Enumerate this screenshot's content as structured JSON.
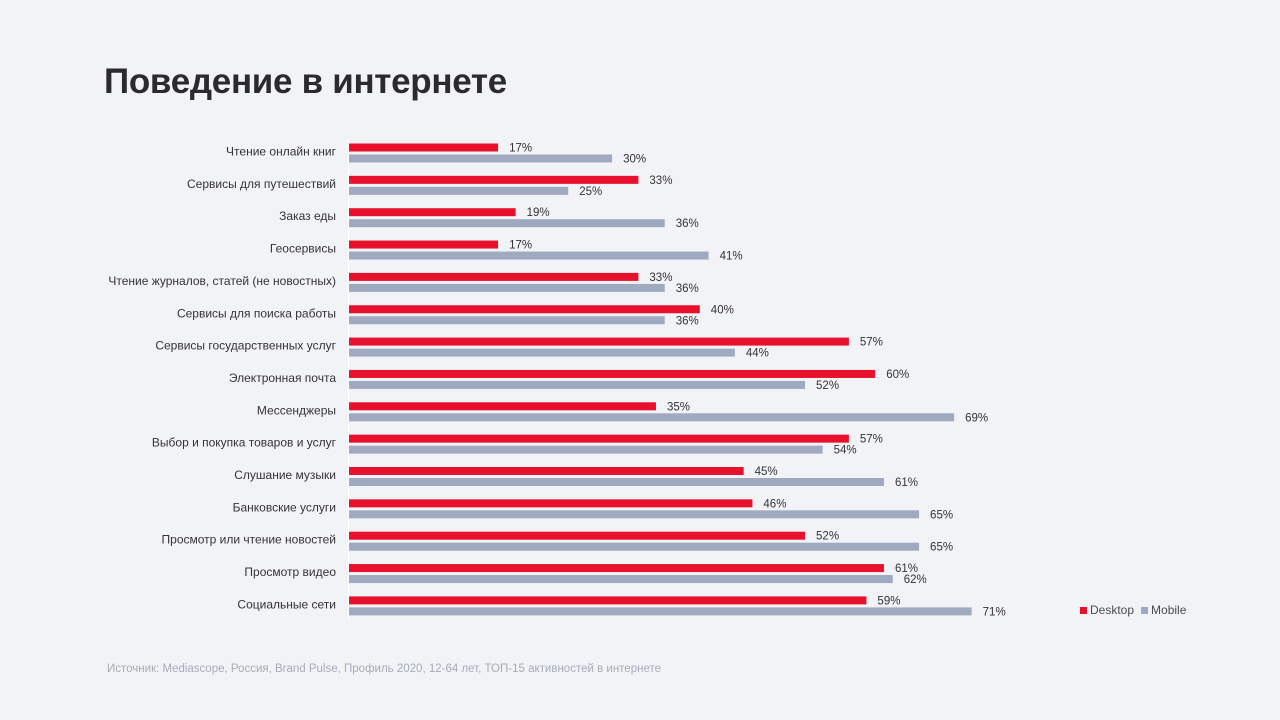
{
  "title": "Поведение в интернете",
  "source": "Источник: Mediascope, Россия, Brand Pulse, Профиль 2020, 12-64 лет, ТОП-15 активностей в интернете",
  "colors": {
    "desktop": "#e8112d",
    "mobile": "#9fa9bf",
    "background": "#f2f3f6"
  },
  "legend": [
    {
      "name": "Desktop",
      "color": "#e8112d"
    },
    {
      "name": "Mobile",
      "color": "#9fa9bf"
    }
  ],
  "chart_data": {
    "type": "bar",
    "orientation": "horizontal",
    "title": "Поведение в интернете",
    "xlabel": "",
    "ylabel": "",
    "xlim": [
      0,
      100
    ],
    "grid": false,
    "legend_position": "bottom-right",
    "value_suffix": "%",
    "categories": [
      "Чтение онлайн книг",
      "Сервисы для путешествий",
      "Заказ еды",
      "Геосервисы",
      "Чтение журналов, статей (не новостных)",
      "Сервисы для поиска работы",
      "Сервисы государственных услуг",
      "Электронная почта",
      "Мессенджеры",
      "Выбор и покупка товаров и услуг",
      "Слушание музыки",
      "Банковские услуги",
      "Просмотр или чтение новостей",
      "Просмотр видео",
      "Социальные сети"
    ],
    "series": [
      {
        "name": "Desktop",
        "values": [
          17,
          33,
          19,
          17,
          33,
          40,
          57,
          60,
          35,
          57,
          45,
          46,
          52,
          61,
          59
        ]
      },
      {
        "name": "Mobile",
        "values": [
          30,
          25,
          36,
          41,
          36,
          36,
          44,
          52,
          69,
          54,
          61,
          65,
          65,
          62,
          71
        ]
      }
    ]
  }
}
